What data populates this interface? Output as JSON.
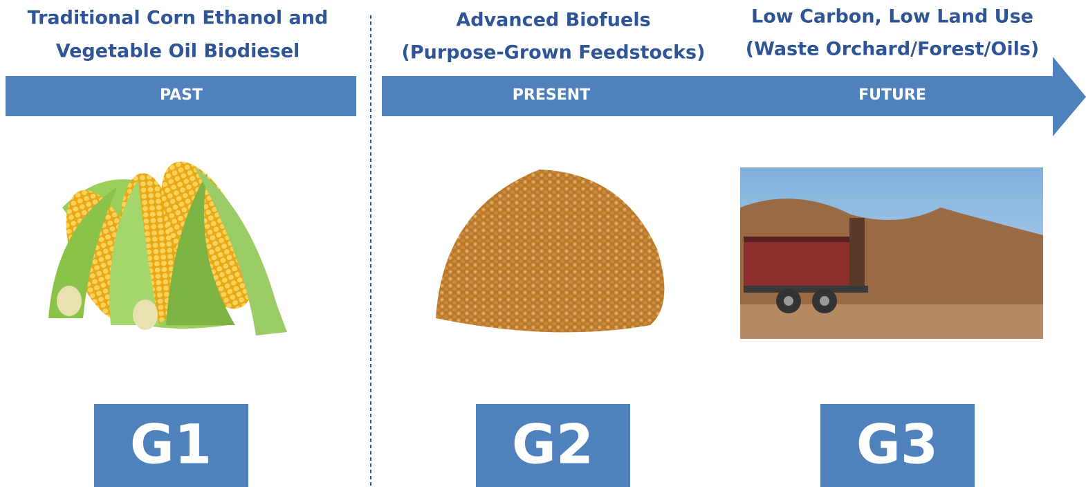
{
  "columns": [
    {
      "heading": [
        "Traditional Corn Ethanol and",
        "Vegetable Oil Biodiesel"
      ],
      "era": "PAST",
      "generation": "G1"
    },
    {
      "heading": [
        "Advanced Biofuels",
        "(Purpose-Grown Feedstocks)"
      ],
      "era": "PRESENT",
      "generation": "G2"
    },
    {
      "heading": [
        "Low Carbon, Low Land Use",
        "(Waste Orchard/Forest/Oils)"
      ],
      "era": "FUTURE",
      "generation": "G3"
    }
  ]
}
